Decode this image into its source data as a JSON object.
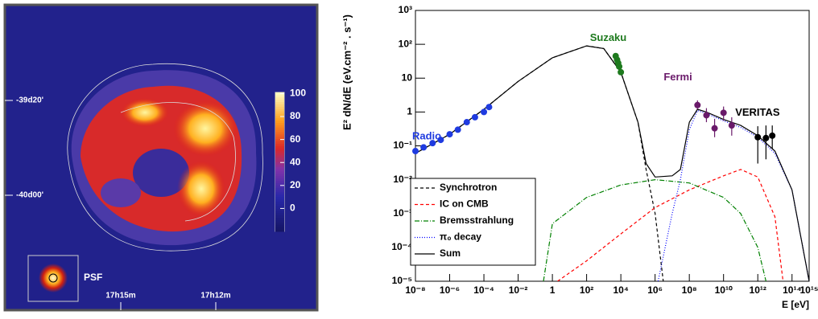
{
  "chart_data": [
    {
      "type": "image",
      "x_labels": [
        "17h15m",
        "17h12m"
      ],
      "y_labels": [
        "-39d20'",
        "-40d00'"
      ],
      "psf_label": "PSF",
      "colorbar_lim": [
        -20,
        101
      ],
      "colorbar_ticks": [
        0,
        20,
        40,
        60,
        80,
        100
      ]
    },
    {
      "type": "line",
      "xlabel": "E [eV]",
      "ylabel": "E² dN/dE (eV.cm⁻² . s⁻¹)",
      "xlog": true,
      "ylog": true,
      "xlim": [
        1e-08,
        1000000000000000.0
      ],
      "ylim": [
        1e-05,
        1000
      ],
      "xticks": [
        {
          "value": 1e-08,
          "label": "10⁻⁸"
        },
        {
          "value": 1e-06,
          "label": "10⁻⁶"
        },
        {
          "value": 0.0001,
          "label": "10⁻⁴"
        },
        {
          "value": 0.01,
          "label": "10⁻²"
        },
        1,
        {
          "value": 100,
          "label": "10²"
        },
        {
          "value": 10000,
          "label": "10⁴"
        },
        {
          "value": 1000000.0,
          "label": "10⁶"
        },
        {
          "value": 100000000.0,
          "label": "10⁸"
        },
        {
          "value": 10000000000.0,
          "label": "10¹⁰"
        },
        {
          "value": 1000000000000.0,
          "label": "10¹²"
        },
        {
          "value": 100000000000000.0,
          "label": "10¹⁴"
        },
        {
          "value": 1000000000000000.0,
          "label": "10¹⁵"
        }
      ],
      "yticks": [
        {
          "value": 1e-05,
          "label": "10⁻⁵"
        },
        {
          "value": 0.0001,
          "label": "10⁻⁴"
        },
        {
          "value": 0.001,
          "label": "10⁻³"
        },
        {
          "value": 0.01,
          "label": "10⁻²"
        },
        {
          "value": 0.1,
          "label": "10⁻¹"
        },
        1,
        10,
        {
          "value": 100,
          "label": "10²"
        },
        {
          "value": 1000,
          "label": "10³"
        }
      ],
      "series": [
        {
          "name": "Synchrotron",
          "color": "#000000",
          "dash": "4,3",
          "x": [
            1e-08,
            1e-06,
            0.0001,
            0.01,
            1,
            100,
            1000,
            10000,
            100000,
            300000,
            1000000.0,
            3000000.0
          ],
          "values": [
            0.06,
            0.22,
            1.2,
            8,
            40,
            90,
            75,
            15,
            0.5,
            0.02,
            0.001,
            1e-05
          ]
        },
        {
          "name": "IC on CMB",
          "color": "#ff0000",
          "dash": "4,3",
          "x": [
            2,
            100,
            10000,
            1000000.0,
            100000000.0,
            10000000000.0,
            100000000000.0,
            1000000000000.0,
            10000000000000.0,
            30000000000000.0
          ],
          "values": [
            1e-05,
            4e-05,
            0.00025,
            0.0015,
            0.005,
            0.013,
            0.02,
            0.012,
            0.0008,
            1e-05
          ]
        },
        {
          "name": "Bremsstrahlung",
          "color": "#008000",
          "dash": "6,2,1,2",
          "x": [
            0.3,
            1,
            100,
            10000,
            1000000.0,
            100000000.0,
            10000000000.0,
            100000000000.0,
            1000000000000.0,
            3000000000000.0
          ],
          "values": [
            1e-05,
            0.0005,
            0.003,
            0.007,
            0.01,
            0.008,
            0.003,
            0.001,
            0.0001,
            1e-05
          ]
        },
        {
          "name": "π₀ decay",
          "color": "#0000ff",
          "dash": "1,2",
          "x": [
            1500000.0,
            10000000.0,
            30000000.0,
            100000000.0,
            300000000.0,
            1000000000.0,
            10000000000.0,
            100000000000.0,
            1000000000000.0,
            10000000000000.0,
            100000000000000.0,
            1000000000000000.0
          ],
          "values": [
            1e-05,
            0.001,
            0.01,
            0.3,
            1.1,
            0.9,
            0.55,
            0.35,
            0.18,
            0.06,
            0.005,
            1e-05
          ]
        },
        {
          "name": "Sum",
          "color": "#000000",
          "dash": "",
          "x": [
            1e-08,
            1e-06,
            0.0001,
            0.01,
            1,
            100,
            1000,
            10000,
            100000,
            300000,
            1000000.0,
            10000000.0,
            30000000.0,
            100000000.0,
            300000000.0,
            1000000000.0,
            10000000000.0,
            100000000000.0,
            1000000000000.0,
            10000000000000.0,
            100000000000000.0,
            1000000000000000.0
          ],
          "values": [
            0.06,
            0.22,
            1.2,
            8,
            40,
            90,
            75,
            15,
            0.5,
            0.03,
            0.012,
            0.013,
            0.02,
            0.5,
            1.2,
            1.0,
            0.6,
            0.4,
            0.2,
            0.07,
            0.005,
            1e-05
          ]
        }
      ],
      "points": [
        {
          "name": "Radio",
          "color": "#1f3be0",
          "x": [
            1e-08,
            3e-08,
            1e-07,
            3e-07,
            1e-06,
            3e-06,
            1e-05,
            3e-05,
            0.0001,
            0.0002
          ],
          "values": [
            0.07,
            0.09,
            0.12,
            0.15,
            0.22,
            0.3,
            0.5,
            0.7,
            1.0,
            1.4
          ]
        },
        {
          "name": "Suzaku",
          "color": "#1e7a1e",
          "x": [
            5000,
            6000,
            7000,
            8000,
            10000
          ],
          "values": [
            45,
            35,
            28,
            22,
            15
          ]
        },
        {
          "name": "Fermi",
          "color": "#6a1a6a",
          "x": [
            300000000.0,
            1000000000.0,
            3000000000.0,
            10000000000.0,
            30000000000.0
          ],
          "values": [
            1.6,
            0.8,
            0.33,
            0.95,
            0.4
          ],
          "yerr": [
            [
              0.4,
              0.6
            ],
            [
              0.3,
              0.5
            ],
            [
              0.15,
              0.3
            ],
            [
              0.4,
              0.5
            ],
            [
              0.2,
              0.3
            ]
          ]
        },
        {
          "name": "VERITAS",
          "color": "#000000",
          "x": [
            1000000000000.0,
            3000000000000.0,
            7000000000000.0
          ],
          "values": [
            0.18,
            0.17,
            0.2
          ],
          "yerr": [
            [
              0.15,
              0.2
            ],
            [
              0.13,
              0.23
            ],
            [
              0.12,
              0.2
            ]
          ]
        }
      ]
    }
  ]
}
